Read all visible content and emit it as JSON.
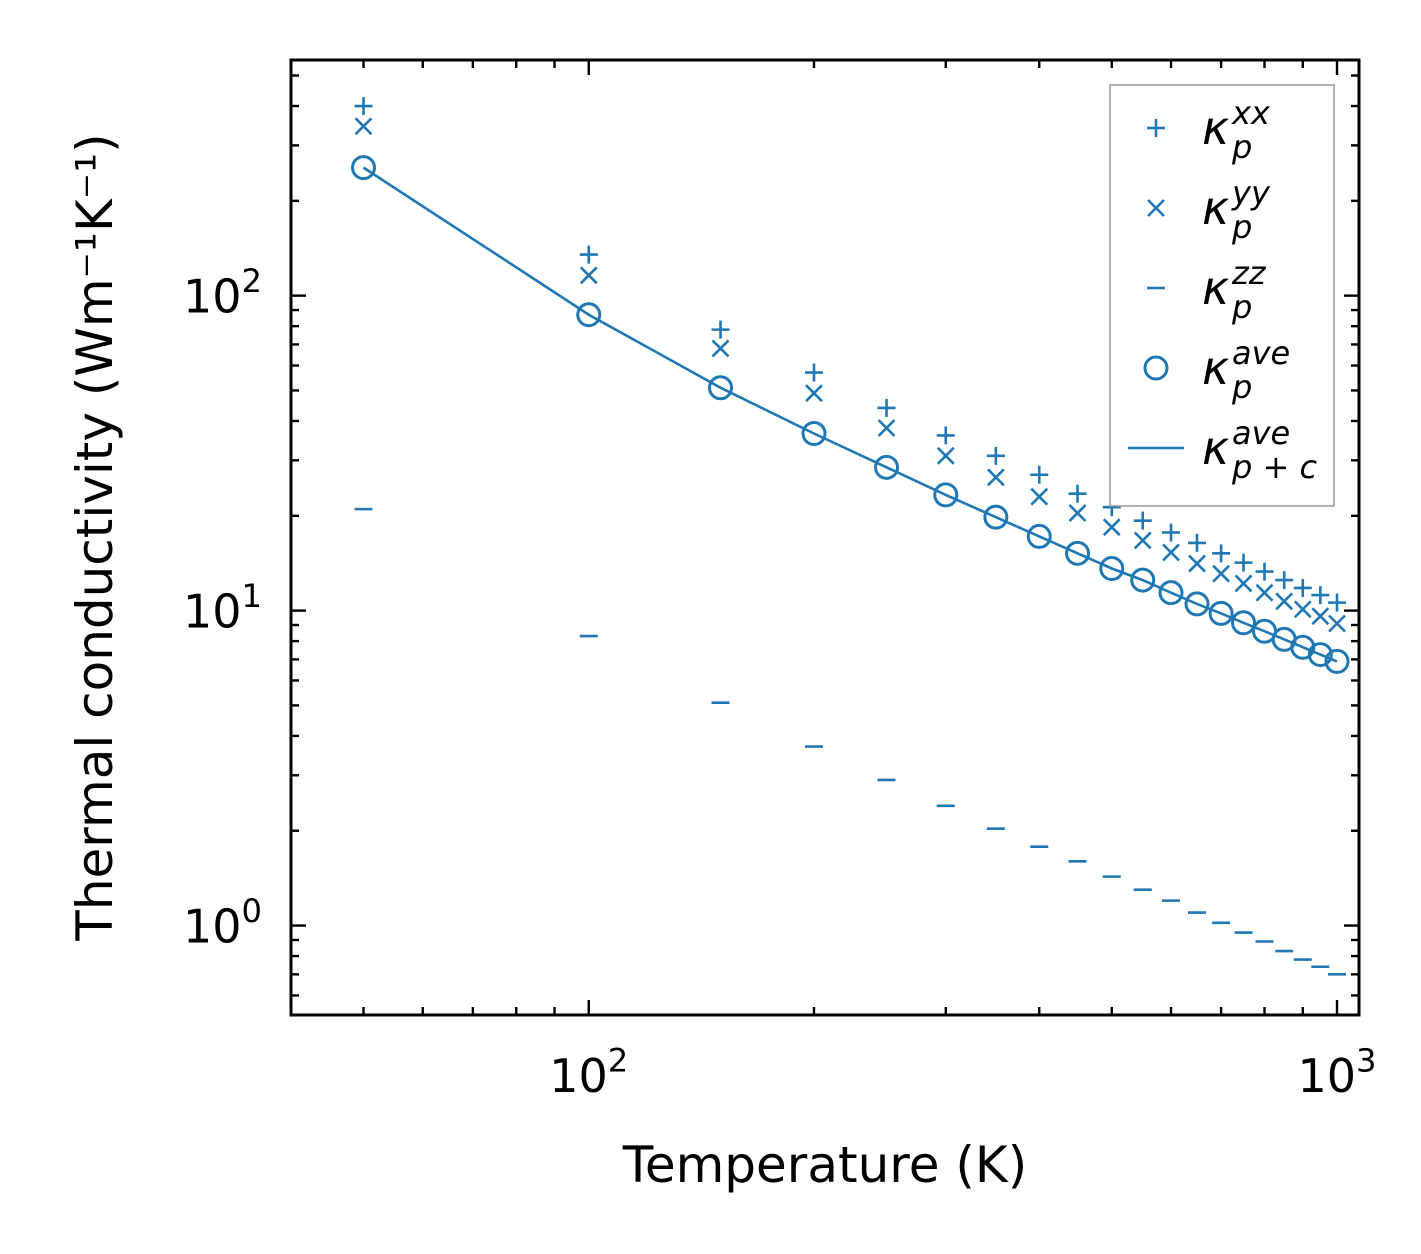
{
  "chart_data": {
    "type": "scatter",
    "xscale": "log",
    "yscale": "log",
    "xlabel": "Temperature (K)",
    "ylabel": "Thermal conductivity (Wm⁻¹K⁻¹)",
    "xlim": [
      40,
      1070
    ],
    "ylim": [
      0.52,
      560
    ],
    "xticks": [
      {
        "value": 100,
        "base": "10",
        "exp": "2"
      },
      {
        "value": 1000,
        "base": "10",
        "exp": "3"
      }
    ],
    "yticks": [
      {
        "value": 1,
        "base": "10",
        "exp": "0"
      },
      {
        "value": 10,
        "base": "10",
        "exp": "1"
      },
      {
        "value": 100,
        "base": "10",
        "exp": "2"
      }
    ],
    "legend_position": "top-right",
    "x": [
      50,
      100,
      150,
      200,
      250,
      300,
      350,
      400,
      450,
      500,
      550,
      600,
      650,
      700,
      750,
      800,
      850,
      900,
      950,
      1000
    ],
    "series": [
      {
        "name": "κ_p^xx",
        "sym": "κ",
        "sub": "p",
        "sup": "xx",
        "marker": "plus",
        "color": "#1f77b4",
        "values": [
          400,
          135,
          78,
          57,
          44,
          36,
          31,
          27,
          23.5,
          21.3,
          19.3,
          17.7,
          16.4,
          15.2,
          14.2,
          13.3,
          12.5,
          11.8,
          11.2,
          10.6
        ]
      },
      {
        "name": "κ_p^yy",
        "sym": "κ",
        "sub": "p",
        "sup": "yy",
        "marker": "x",
        "color": "#1f77b4",
        "values": [
          345,
          116,
          68,
          49,
          38,
          31,
          26.5,
          23,
          20.4,
          18.4,
          16.7,
          15.3,
          14.1,
          13.1,
          12.2,
          11.4,
          10.7,
          10.1,
          9.6,
          9.1
        ]
      },
      {
        "name": "κ_p^zz",
        "sym": "κ",
        "sub": "p",
        "sup": "zz",
        "marker": "dash",
        "color": "#1f77b4",
        "values": [
          21,
          8.3,
          5.1,
          3.7,
          2.9,
          2.4,
          2.03,
          1.78,
          1.6,
          1.43,
          1.3,
          1.2,
          1.1,
          1.02,
          0.95,
          0.89,
          0.83,
          0.78,
          0.74,
          0.7
        ]
      },
      {
        "name": "κ_p^ave",
        "sym": "κ",
        "sub": "p",
        "sup": "ave",
        "marker": "circle",
        "color": "#1f77b4",
        "values": [
          255,
          87,
          51,
          36.5,
          28.5,
          23.3,
          19.8,
          17.2,
          15.2,
          13.6,
          12.5,
          11.4,
          10.5,
          9.8,
          9.15,
          8.6,
          8.1,
          7.65,
          7.25,
          6.9
        ]
      },
      {
        "name": "κ_p+c^ave",
        "sym": "κ",
        "sub": "p + c",
        "sup": "ave",
        "marker": "line",
        "color": "#1f77b4",
        "values": [
          255,
          87,
          51,
          36.5,
          28.5,
          23.3,
          19.8,
          17.2,
          15.2,
          13.6,
          12.5,
          11.4,
          10.5,
          9.8,
          9.15,
          8.6,
          8.1,
          7.65,
          7.25,
          6.9
        ]
      }
    ]
  }
}
